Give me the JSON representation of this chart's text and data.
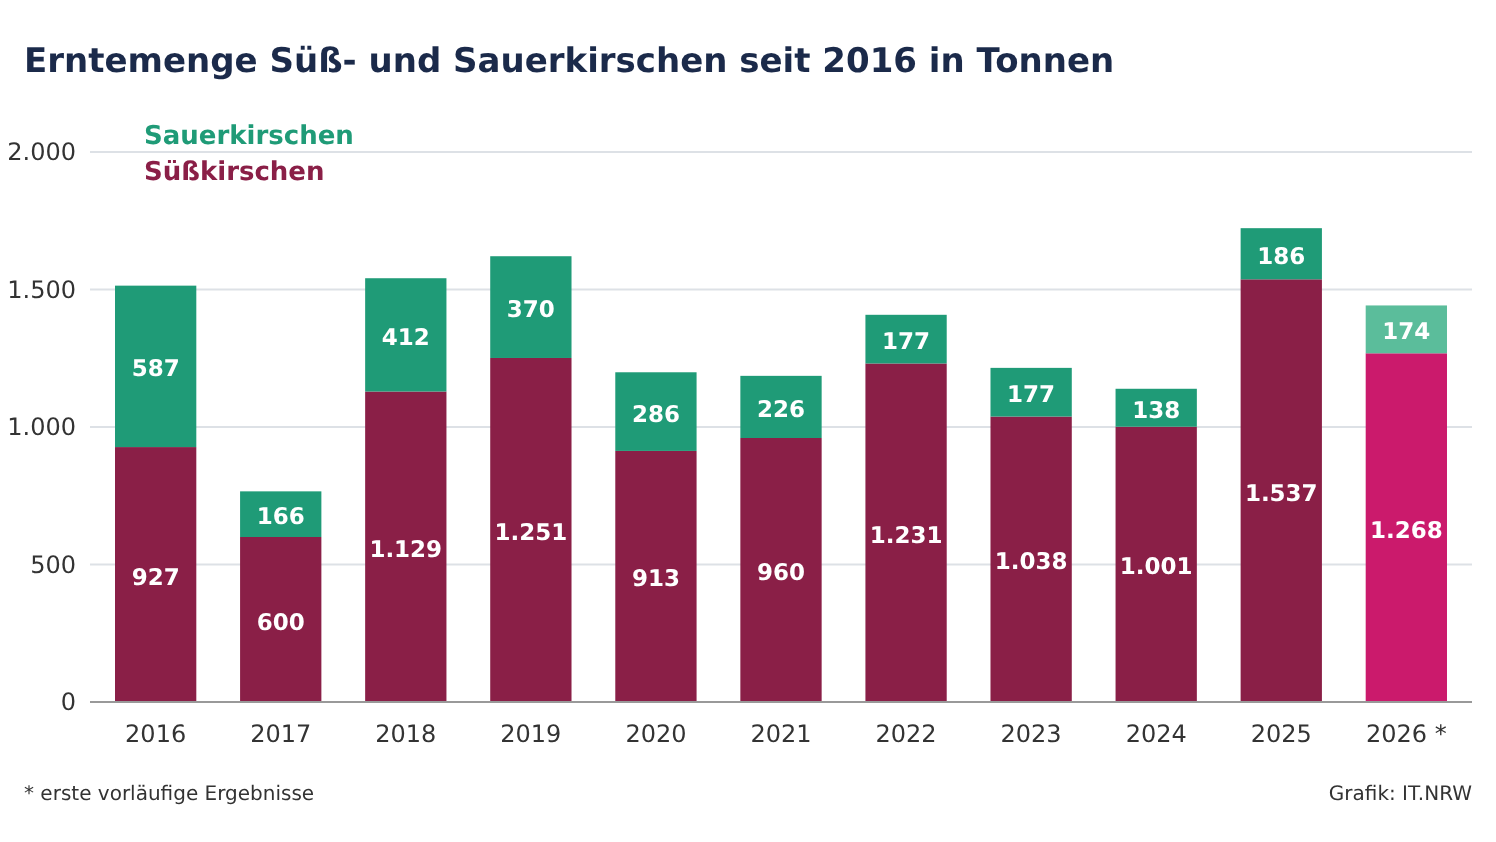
{
  "chart_data": {
    "type": "bar",
    "title": "Erntemenge Süß- und Sauerkirschen seit 2016 in Tonnen",
    "stacked": true,
    "legend": "top left",
    "grid": "y",
    "categories": [
      "2016",
      "2017",
      "2018",
      "2019",
      "2020",
      "2021",
      "2022",
      "2023",
      "2024",
      "2025",
      "2026 *"
    ],
    "series": [
      {
        "name": "Süßkirschen",
        "color": "#8a1f47",
        "colors": [
          "#8a1f47",
          "#8a1f47",
          "#8a1f47",
          "#8a1f47",
          "#8a1f47",
          "#8a1f47",
          "#8a1f47",
          "#8a1f47",
          "#8a1f47",
          "#8a1f47",
          "#cb1a6c"
        ],
        "values": [
          927,
          600,
          1129,
          1251,
          913,
          960,
          1231,
          1038,
          1001,
          1537,
          1268
        ],
        "value_labels": [
          "927",
          "600",
          "1.129",
          "1.251",
          "913",
          "960",
          "1.231",
          "1.038",
          "1.001",
          "1.537",
          "1.268"
        ]
      },
      {
        "name": "Sauerkirschen",
        "color": "#1f9b77",
        "colors": [
          "#1f9b77",
          "#1f9b77",
          "#1f9b77",
          "#1f9b77",
          "#1f9b77",
          "#1f9b77",
          "#1f9b77",
          "#1f9b77",
          "#1f9b77",
          "#1f9b77",
          "#5bbd9b"
        ],
        "values": [
          587,
          166,
          412,
          370,
          286,
          226,
          177,
          177,
          138,
          186,
          174
        ],
        "value_labels": [
          "587",
          "166",
          "412",
          "370",
          "286",
          "226",
          "177",
          "177",
          "138",
          "186",
          "174"
        ]
      }
    ],
    "ylim": [
      0,
      2000
    ],
    "yticks": [
      0,
      500,
      {
        "value": 1000,
        "label": "1.000"
      },
      {
        "value": 1500,
        "label": "1.500"
      },
      {
        "value": 2000,
        "label": "2.000"
      }
    ],
    "annotations": [
      "* erste vorläufige Ergebnisse",
      "Grafik: IT.NRW"
    ]
  }
}
